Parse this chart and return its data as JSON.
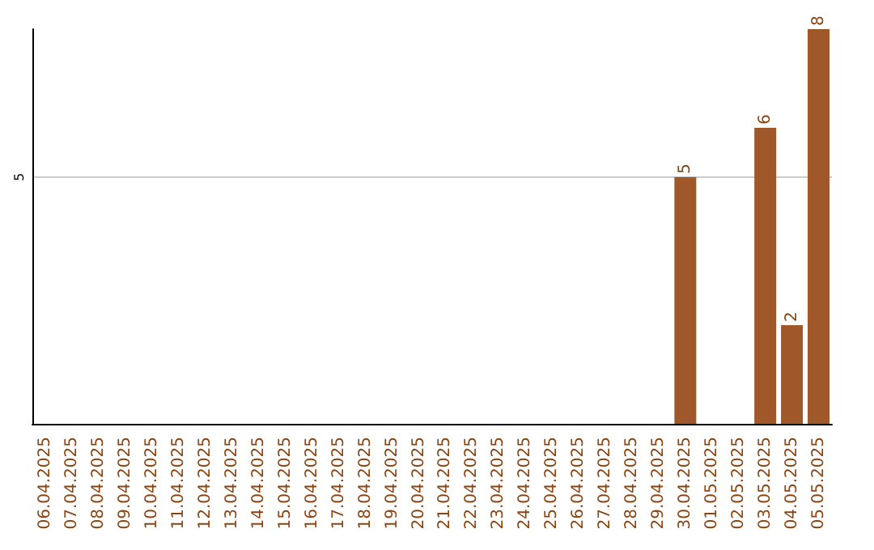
{
  "chart_data": {
    "type": "bar",
    "categories": [
      "06.04.2025",
      "07.04.2025",
      "08.04.2025",
      "09.04.2025",
      "10.04.2025",
      "11.04.2025",
      "12.04.2025",
      "13.04.2025",
      "14.04.2025",
      "15.04.2025",
      "16.04.2025",
      "17.04.2025",
      "18.04.2025",
      "19.04.2025",
      "20.04.2025",
      "21.04.2025",
      "22.04.2025",
      "23.04.2025",
      "24.04.2025",
      "25.04.2025",
      "26.04.2025",
      "27.04.2025",
      "28.04.2025",
      "29.04.2025",
      "30.04.2025",
      "01.05.2025",
      "02.05.2025",
      "03.05.2025",
      "04.05.2025",
      "05.05.2025"
    ],
    "values": [
      null,
      null,
      null,
      null,
      null,
      null,
      null,
      null,
      null,
      null,
      null,
      null,
      null,
      null,
      null,
      null,
      null,
      null,
      null,
      null,
      null,
      null,
      null,
      null,
      5,
      null,
      null,
      6,
      2,
      8
    ],
    "color": "#a0582a",
    "ylim": [
      0,
      8
    ],
    "yticks": [
      5
    ],
    "grid": "y",
    "data_labels": true
  }
}
